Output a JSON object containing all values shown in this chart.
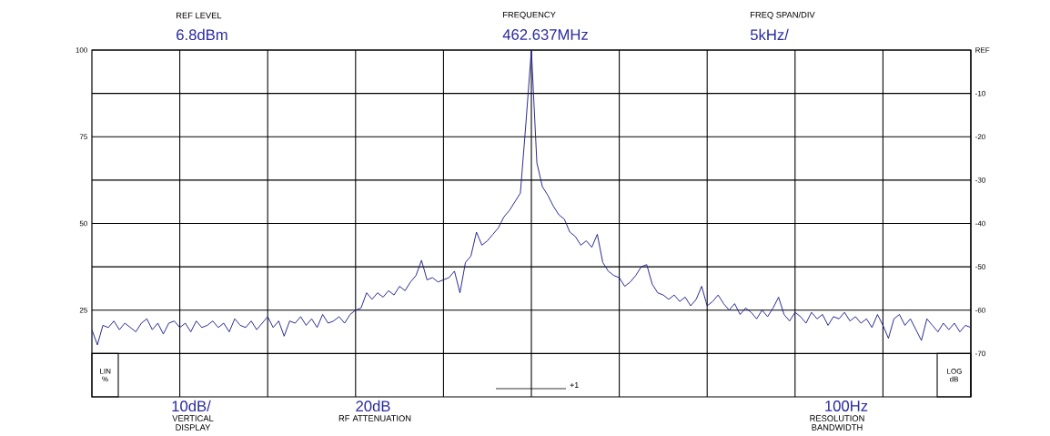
{
  "chart_data": {
    "type": "line",
    "annotations": [
      "REF LEVEL",
      "6.8dBm",
      "FREQUENCY",
      "462.637MHz",
      "FREQ SPAN/DIV",
      "5kHz/",
      "10dB/",
      "VERTICAL DISPLAY",
      "20dB",
      "RF ATTENUATION",
      "100Hz",
      "RESOLUTION BANDWIDTH",
      "+1"
    ],
    "ylabel": "LIN %",
    "y2label": "LOG dB",
    "categories": [
      null,
      null,
      null,
      null,
      null,
      null,
      null,
      null,
      null,
      null,
      null,
      null,
      null,
      null,
      null,
      null,
      null,
      null,
      null,
      null,
      null,
      null,
      null,
      null,
      null,
      null,
      null,
      null,
      null,
      null,
      null,
      null,
      null,
      null,
      null,
      null,
      null,
      null,
      null,
      null,
      null,
      null,
      null,
      null,
      null,
      null,
      null,
      null,
      null,
      null,
      null,
      null,
      null,
      null,
      null,
      null,
      null,
      null,
      null,
      null,
      null,
      null,
      null,
      null,
      null,
      null,
      null,
      null,
      null,
      null,
      null,
      null,
      null,
      null,
      null,
      null,
      null,
      null,
      null,
      null,
      null,
      null,
      null,
      null,
      null,
      null,
      null,
      null,
      null,
      null,
      null,
      null,
      null,
      null,
      null,
      null,
      null,
      null,
      null,
      null,
      null,
      null,
      null,
      null,
      null,
      null,
      null,
      null,
      null,
      null,
      null,
      null,
      null,
      null,
      null,
      null,
      null,
      null,
      null,
      null,
      null,
      null,
      null,
      null,
      null,
      null,
      null,
      null,
      null,
      null,
      null,
      null,
      null,
      null,
      null,
      null,
      null,
      null,
      null,
      null,
      null,
      null,
      null,
      null,
      null,
      null,
      null,
      null,
      null,
      null,
      null,
      null,
      null,
      null,
      null,
      null,
      null,
      null,
      null,
      null,
      null
    ],
    "ylim": [
      0,
      100
    ],
    "yticks": [
      25,
      50,
      75,
      100
    ],
    "y2lim": [
      -80,
      0
    ],
    "y2ticks": [
      {
        "value": 0,
        "label": "REF"
      },
      -10,
      -20,
      -30,
      -40,
      -50,
      -60,
      -70
    ],
    "grid": true,
    "series": [
      {
        "color": "#1c1c8c",
        "axis": "y2",
        "values": [
          -64.5,
          -68,
          -63.5,
          -64,
          -62.5,
          -64.5,
          -63,
          -64,
          -65,
          -63,
          -62,
          -64.5,
          -63,
          -65.5,
          -63,
          -62.5,
          -64,
          -63,
          -65,
          -62.5,
          -64,
          -63.5,
          -62.5,
          -64,
          -63,
          -65,
          -62,
          -63.5,
          -64,
          -62.5,
          -64.5,
          -63,
          -61.5,
          -64,
          -62.5,
          -66,
          -62.5,
          -63,
          -61.5,
          -63.5,
          -62,
          -64,
          -61,
          -63,
          -62.5,
          -61.5,
          -63,
          -61,
          -60,
          -59.5,
          -56,
          -57.5,
          -56,
          -57,
          -55.5,
          -56.5,
          -54.5,
          -55.5,
          -53.5,
          -52,
          -48.5,
          -53,
          -52.5,
          -53.5,
          -53,
          -52.5,
          -51,
          -56,
          -49,
          -47.5,
          -42,
          -45,
          -44,
          -42.5,
          -41,
          -38.5,
          -37,
          -35,
          -33,
          -17,
          0,
          -26,
          -31.5,
          -33.5,
          -36,
          -38,
          -39,
          -42,
          -43,
          -45,
          -44,
          -45.5,
          -42.5,
          -49,
          -51,
          -52,
          -52.5,
          -54.5,
          -53.5,
          -52,
          -50,
          -49.5,
          -54,
          -56,
          -56.5,
          -57.5,
          -56.5,
          -58,
          -57,
          -59,
          -57.5,
          -54.5,
          -59,
          -58,
          -56.5,
          -58.5,
          -60,
          -58.5,
          -61,
          -59.5,
          -60.5,
          -62,
          -60,
          -61.5,
          -59.5,
          -57,
          -61,
          -62.5,
          -60.5,
          -61.5,
          -63,
          -60.5,
          -62,
          -61,
          -63.5,
          -61.5,
          -62,
          -60.5,
          -62.5,
          -61.5,
          -63,
          -62,
          -64,
          -61,
          -63.5,
          -66.5,
          -62,
          -61,
          -63.5,
          -62,
          -64.5,
          -67,
          -62,
          -63.5,
          -65,
          -63,
          -64.5,
          -63,
          -65,
          -63.5,
          -64
        ]
      }
    ]
  }
}
